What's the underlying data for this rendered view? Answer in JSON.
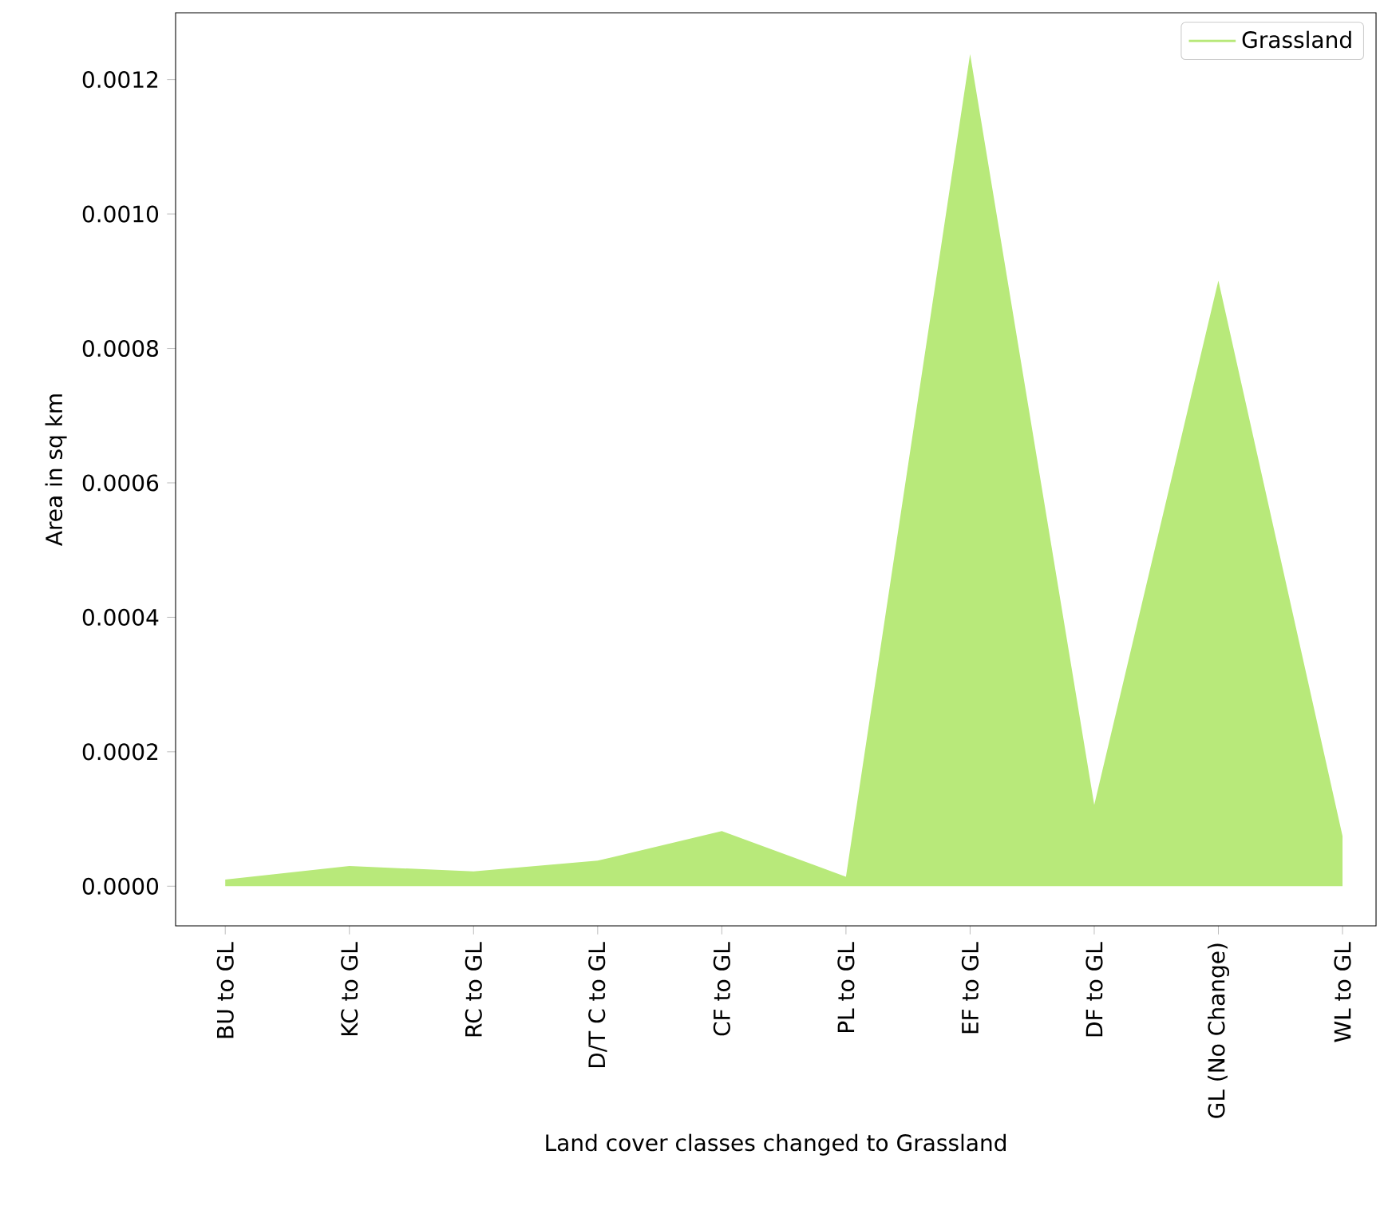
{
  "chart_data": {
    "type": "area",
    "xlabel": "Land cover classes changed to Grassland",
    "ylabel": "Area in sq km",
    "categories": [
      "BU to GL",
      "KC to GL",
      "RC to GL",
      "D/T C to GL",
      "CF to GL",
      "PL to GL",
      "EF to GL",
      "DF to GL",
      "GL (No Change)",
      "WL to GL"
    ],
    "series": [
      {
        "name": "Grassland",
        "color": "#b8e97a",
        "values": [
          1e-05,
          3e-05,
          2.2e-05,
          3.8e-05,
          8.2e-05,
          1.4e-05,
          0.001238,
          0.000121,
          0.000901,
          7.46e-05
        ]
      }
    ],
    "ylim": [
      -5.9e-05,
      0.0012993
    ],
    "yticks": [
      {
        "value": 0,
        "label": "0.0000"
      },
      {
        "value": 0.0002,
        "label": "0.0002"
      },
      {
        "value": 0.0004,
        "label": "0.0004"
      },
      {
        "value": 0.0006,
        "label": "0.0006"
      },
      {
        "value": 0.0008,
        "label": "0.0008"
      },
      {
        "value": 0.001,
        "label": "0.0010"
      },
      {
        "value": 0.0012,
        "label": "0.0012"
      }
    ],
    "legend": "top right",
    "grid": false
  }
}
